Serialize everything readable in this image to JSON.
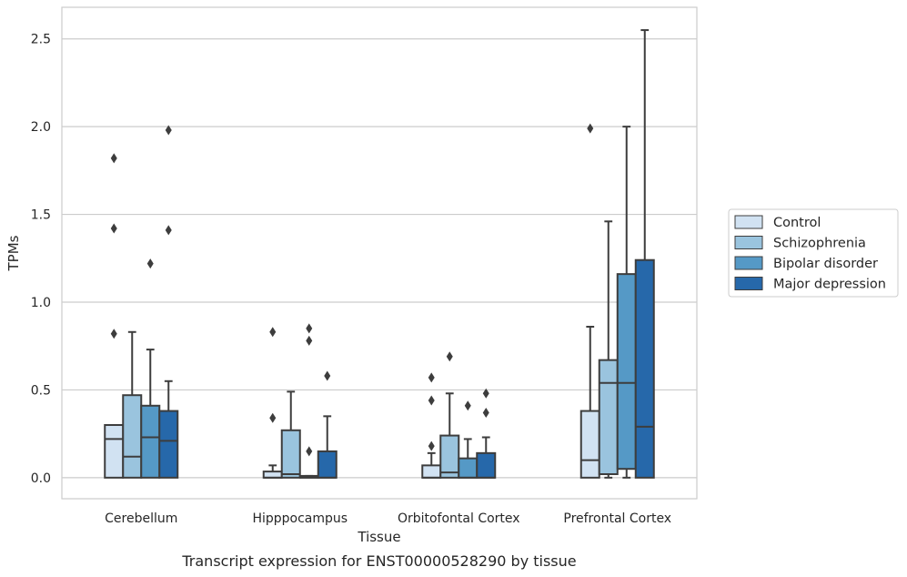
{
  "chart_data": {
    "type": "box",
    "title": "",
    "caption": "Transcript expression for ENST00000528290 by tissue",
    "xlabel": "Tissue",
    "ylabel": "TPMs",
    "ylim": [
      -0.12,
      2.68
    ],
    "yticks": [
      0.0,
      0.5,
      1.0,
      1.5,
      2.0,
      2.5
    ],
    "ytick_labels": [
      "0.0",
      "0.5",
      "1.0",
      "1.5",
      "2.0",
      "2.5"
    ],
    "grid": "horizontal",
    "legend_placement": "right",
    "categories": [
      "Cerebellum",
      "Hipppocampus",
      "Orbitofontal Cortex",
      "Prefrontal Cortex"
    ],
    "series": [
      {
        "name": "Control",
        "color": "#d1e2f2",
        "boxes": [
          {
            "min": 0.0,
            "q1": 0.0,
            "median": 0.22,
            "q3": 0.3,
            "max": 0.3,
            "outliers": [
              0.82,
              1.42,
              1.82
            ]
          },
          {
            "min": 0.0,
            "q1": 0.0,
            "median": 0.0,
            "q3": 0.035,
            "max": 0.07,
            "outliers": [
              0.34,
              0.83
            ]
          },
          {
            "min": 0.0,
            "q1": 0.0,
            "median": 0.0,
            "q3": 0.07,
            "max": 0.14,
            "outliers": [
              0.18,
              0.44,
              0.57
            ]
          },
          {
            "min": 0.0,
            "q1": 0.0,
            "median": 0.1,
            "q3": 0.38,
            "max": 0.86,
            "outliers": [
              1.99
            ]
          }
        ]
      },
      {
        "name": "Schizophrenia",
        "color": "#9ac4de",
        "boxes": [
          {
            "min": 0.0,
            "q1": 0.0,
            "median": 0.12,
            "q3": 0.47,
            "max": 0.83,
            "outliers": []
          },
          {
            "min": 0.0,
            "q1": 0.0,
            "median": 0.02,
            "q3": 0.27,
            "max": 0.49,
            "outliers": []
          },
          {
            "min": 0.0,
            "q1": 0.0,
            "median": 0.03,
            "q3": 0.24,
            "max": 0.48,
            "outliers": [
              0.69
            ]
          },
          {
            "min": 0.0,
            "q1": 0.02,
            "median": 0.54,
            "q3": 0.67,
            "max": 1.46,
            "outliers": []
          }
        ]
      },
      {
        "name": "Bipolar disorder",
        "color": "#5599c6",
        "boxes": [
          {
            "min": 0.0,
            "q1": 0.0,
            "median": 0.23,
            "q3": 0.41,
            "max": 0.73,
            "outliers": [
              1.22
            ]
          },
          {
            "min": 0.0,
            "q1": 0.0,
            "median": 0.0,
            "q3": 0.01,
            "max": 0.01,
            "outliers": [
              0.15,
              0.78,
              0.85
            ]
          },
          {
            "min": 0.0,
            "q1": 0.0,
            "median": 0.0,
            "q3": 0.11,
            "max": 0.22,
            "outliers": [
              0.41
            ]
          },
          {
            "min": 0.0,
            "q1": 0.05,
            "median": 0.54,
            "q3": 1.16,
            "max": 2.0,
            "outliers": []
          }
        ]
      },
      {
        "name": "Major depression",
        "color": "#2668aa",
        "boxes": [
          {
            "min": 0.0,
            "q1": 0.0,
            "median": 0.21,
            "q3": 0.38,
            "max": 0.55,
            "outliers": [
              1.41,
              1.98
            ]
          },
          {
            "min": 0.0,
            "q1": 0.0,
            "median": 0.0,
            "q3": 0.15,
            "max": 0.35,
            "outliers": [
              0.58
            ]
          },
          {
            "min": 0.0,
            "q1": 0.0,
            "median": 0.0,
            "q3": 0.14,
            "max": 0.23,
            "outliers": [
              0.37,
              0.48
            ]
          },
          {
            "min": 0.0,
            "q1": 0.0,
            "median": 0.29,
            "q3": 1.24,
            "max": 2.55,
            "outliers": []
          }
        ]
      }
    ]
  }
}
